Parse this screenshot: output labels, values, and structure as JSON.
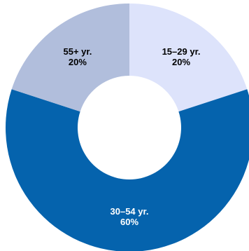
{
  "chart_data": {
    "type": "pie",
    "donut": true,
    "title": "",
    "legend": "none",
    "slices": [
      {
        "name": "15–29 yr.",
        "value": 20,
        "value_label": "20%",
        "color": "#dde3fb",
        "label_color": "#000000"
      },
      {
        "name": "30–54 yr.",
        "value": 60,
        "value_label": "60%",
        "color": "#0563ad",
        "label_color": "#ffffff"
      },
      {
        "name": "55+ yr.",
        "value": 20,
        "value_label": "20%",
        "color": "#b1bedc",
        "label_color": "#000000"
      }
    ]
  }
}
